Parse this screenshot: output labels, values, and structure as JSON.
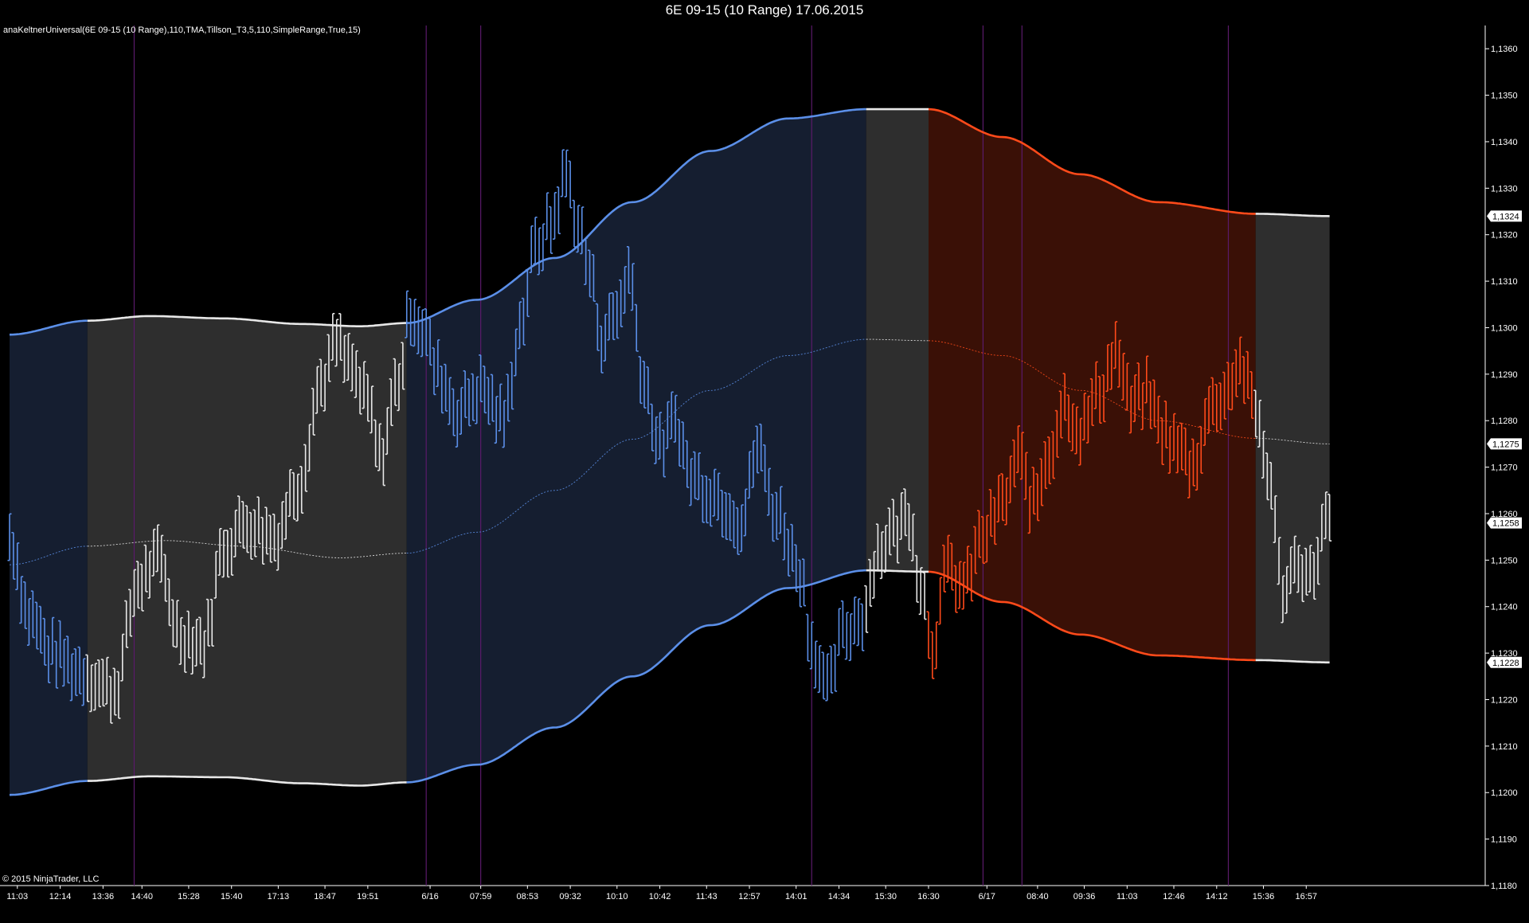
{
  "window": {
    "title": "6E 09-15 (10 Range)  17.06.2015"
  },
  "indicator_label": "anaKeltnerUniversal(6E 09-15 (10 Range),110,TMA,Tillson_T3,5,110,SimpleRange,True,15)",
  "copyright": "© 2015 NinjaTrader, LLC",
  "colors": {
    "background": "#000000",
    "up_regime": "#5B8FE8",
    "up_fill": "#151E30",
    "neutral": "#E8E8E8",
    "neutral_fill": "#2E2E2E",
    "down_regime": "#FF4A1A",
    "down_fill": "#3A1006",
    "session_line": "#5A1A6A"
  },
  "price_tags": [
    {
      "label": "1,1324",
      "value": 1.1324
    },
    {
      "label": "1,1275",
      "value": 1.1275
    },
    {
      "label": "1,1258",
      "value": 1.1258
    },
    {
      "label": "1,1228",
      "value": 1.1228
    }
  ],
  "chart_data": {
    "type": "line",
    "title": "6E 09-15 (10 Range)  17.06.2015",
    "xlabel": "",
    "ylabel": "",
    "ylim": [
      1.118,
      1.1365
    ],
    "y_ticks": [
      {
        "value": 1.118,
        "label": "1,1180"
      },
      {
        "value": 1.119,
        "label": "1,1190"
      },
      {
        "value": 1.12,
        "label": "1,1200"
      },
      {
        "value": 1.121,
        "label": "1,1210"
      },
      {
        "value": 1.122,
        "label": "1,1220"
      },
      {
        "value": 1.123,
        "label": "1,1230"
      },
      {
        "value": 1.124,
        "label": "1,1240"
      },
      {
        "value": 1.125,
        "label": "1,1250"
      },
      {
        "value": 1.126,
        "label": "1,1260"
      },
      {
        "value": 1.127,
        "label": "1,1270"
      },
      {
        "value": 1.128,
        "label": "1,1280"
      },
      {
        "value": 1.129,
        "label": "1,1290"
      },
      {
        "value": 1.13,
        "label": "1,1300"
      },
      {
        "value": 1.131,
        "label": "1,1310"
      },
      {
        "value": 1.132,
        "label": "1,1320"
      },
      {
        "value": 1.133,
        "label": "1,1330"
      },
      {
        "value": 1.134,
        "label": "1,1340"
      },
      {
        "value": 1.135,
        "label": "1,1350"
      },
      {
        "value": 1.136,
        "label": "1,1360"
      }
    ],
    "bar_count": 340,
    "x_ticks": [
      {
        "bar": 2,
        "label": "11:03"
      },
      {
        "bar": 13,
        "label": "12:14"
      },
      {
        "bar": 24,
        "label": "13:36"
      },
      {
        "bar": 34,
        "label": "14:40"
      },
      {
        "bar": 46,
        "label": "15:28"
      },
      {
        "bar": 57,
        "label": "15:40"
      },
      {
        "bar": 69,
        "label": "17:13"
      },
      {
        "bar": 81,
        "label": "18:47"
      },
      {
        "bar": 92,
        "label": "19:51"
      },
      {
        "bar": 108,
        "label": "6/16"
      },
      {
        "bar": 121,
        "label": "07:59"
      },
      {
        "bar": 133,
        "label": "08:53"
      },
      {
        "bar": 144,
        "label": "09:32"
      },
      {
        "bar": 156,
        "label": "10:10"
      },
      {
        "bar": 167,
        "label": "10:42"
      },
      {
        "bar": 179,
        "label": "11:43"
      },
      {
        "bar": 190,
        "label": "12:57"
      },
      {
        "bar": 202,
        "label": "14:01"
      },
      {
        "bar": 213,
        "label": "14:34"
      },
      {
        "bar": 225,
        "label": "15:30"
      },
      {
        "bar": 236,
        "label": "16:30"
      },
      {
        "bar": 251,
        "label": "6/17"
      },
      {
        "bar": 264,
        "label": "08:40"
      },
      {
        "bar": 276,
        "label": "09:36"
      },
      {
        "bar": 287,
        "label": "11:03"
      },
      {
        "bar": 299,
        "label": "12:46"
      },
      {
        "bar": 310,
        "label": "14:12"
      },
      {
        "bar": 322,
        "label": "15:36"
      },
      {
        "bar": 333,
        "label": "16:57"
      }
    ],
    "session_lines": [
      32,
      107,
      121,
      206,
      250,
      260,
      313
    ],
    "regimes": [
      {
        "state": "up",
        "start": 0,
        "end": 20
      },
      {
        "state": "neutral",
        "start": 20,
        "end": 102
      },
      {
        "state": "up",
        "start": 102,
        "end": 220
      },
      {
        "state": "neutral",
        "start": 220,
        "end": 236
      },
      {
        "state": "down",
        "start": 236,
        "end": 320
      },
      {
        "state": "neutral",
        "start": 320,
        "end": 339
      }
    ],
    "keltner": {
      "upper": [
        [
          0,
          1.12985
        ],
        [
          20,
          1.13015
        ],
        [
          36,
          1.13025
        ],
        [
          55,
          1.1302
        ],
        [
          75,
          1.13008
        ],
        [
          90,
          1.13003
        ],
        [
          102,
          1.1301
        ],
        [
          120,
          1.1306
        ],
        [
          140,
          1.1315
        ],
        [
          160,
          1.1327
        ],
        [
          180,
          1.1338
        ],
        [
          200,
          1.1345
        ],
        [
          220,
          1.1347
        ],
        [
          236,
          1.1347
        ],
        [
          255,
          1.1341
        ],
        [
          275,
          1.1333
        ],
        [
          295,
          1.1327
        ],
        [
          320,
          1.13245
        ],
        [
          339,
          1.1324
        ]
      ],
      "middle": [
        [
          0,
          1.1249
        ],
        [
          20,
          1.1253
        ],
        [
          40,
          1.12542
        ],
        [
          60,
          1.1253
        ],
        [
          85,
          1.12505
        ],
        [
          102,
          1.12515
        ],
        [
          120,
          1.1256
        ],
        [
          140,
          1.1265
        ],
        [
          160,
          1.1276
        ],
        [
          180,
          1.12865
        ],
        [
          200,
          1.1294
        ],
        [
          220,
          1.12975
        ],
        [
          236,
          1.12972
        ],
        [
          255,
          1.1294
        ],
        [
          275,
          1.12865
        ],
        [
          295,
          1.128
        ],
        [
          320,
          1.12762
        ],
        [
          339,
          1.1275
        ]
      ],
      "lower": [
        [
          0,
          1.11995
        ],
        [
          20,
          1.12025
        ],
        [
          36,
          1.12035
        ],
        [
          55,
          1.12033
        ],
        [
          75,
          1.1202
        ],
        [
          90,
          1.12015
        ],
        [
          102,
          1.12022
        ],
        [
          120,
          1.1206
        ],
        [
          140,
          1.1214
        ],
        [
          160,
          1.1225
        ],
        [
          180,
          1.1236
        ],
        [
          200,
          1.1244
        ],
        [
          220,
          1.12478
        ],
        [
          236,
          1.12475
        ],
        [
          255,
          1.1241
        ],
        [
          275,
          1.1234
        ],
        [
          295,
          1.12295
        ],
        [
          320,
          1.12285
        ],
        [
          339,
          1.1228
        ]
      ]
    },
    "price_path": [
      [
        0,
        1.1255
      ],
      [
        5,
        1.1238
      ],
      [
        11,
        1.123
      ],
      [
        18,
        1.1226
      ],
      [
        27,
        1.1222
      ],
      [
        33,
        1.1245
      ],
      [
        38,
        1.125
      ],
      [
        44,
        1.1234
      ],
      [
        50,
        1.1232
      ],
      [
        55,
        1.1253
      ],
      [
        61,
        1.1258
      ],
      [
        68,
        1.1255
      ],
      [
        74,
        1.1266
      ],
      [
        80,
        1.1288
      ],
      [
        84,
        1.1297
      ],
      [
        87,
        1.1292
      ],
      [
        92,
        1.1284
      ],
      [
        95,
        1.1272
      ],
      [
        100,
        1.1289
      ],
      [
        103,
        1.1304
      ],
      [
        106,
        1.13
      ],
      [
        110,
        1.129
      ],
      [
        115,
        1.1282
      ],
      [
        121,
        1.1287
      ],
      [
        127,
        1.128
      ],
      [
        131,
        1.13
      ],
      [
        135,
        1.1317
      ],
      [
        139,
        1.1322
      ],
      [
        143,
        1.1333
      ],
      [
        146,
        1.1322
      ],
      [
        149,
        1.1312
      ],
      [
        152,
        1.1298
      ],
      [
        156,
        1.1303
      ],
      [
        159,
        1.1312
      ],
      [
        163,
        1.1288
      ],
      [
        167,
        1.1274
      ],
      [
        171,
        1.128
      ],
      [
        175,
        1.1268
      ],
      [
        180,
        1.1265
      ],
      [
        184,
        1.1262
      ],
      [
        188,
        1.1258
      ],
      [
        192,
        1.1274
      ],
      [
        197,
        1.126
      ],
      [
        203,
        1.1248
      ],
      [
        206,
        1.1232
      ],
      [
        210,
        1.1222
      ],
      [
        214,
        1.1234
      ],
      [
        219,
        1.1238
      ],
      [
        223,
        1.1252
      ],
      [
        227,
        1.1256
      ],
      [
        231,
        1.126
      ],
      [
        234,
        1.1245
      ],
      [
        237,
        1.1232
      ],
      [
        241,
        1.1248
      ],
      [
        245,
        1.1244
      ],
      [
        250,
        1.1255
      ],
      [
        255,
        1.1262
      ],
      [
        259,
        1.1272
      ],
      [
        263,
        1.1262
      ],
      [
        267,
        1.1273
      ],
      [
        271,
        1.1284
      ],
      [
        275,
        1.1278
      ],
      [
        280,
        1.1286
      ],
      [
        284,
        1.1295
      ],
      [
        288,
        1.1283
      ],
      [
        292,
        1.1286
      ],
      [
        296,
        1.1278
      ],
      [
        300,
        1.1274
      ],
      [
        304,
        1.127
      ],
      [
        308,
        1.1282
      ],
      [
        312,
        1.1286
      ],
      [
        316,
        1.1292
      ],
      [
        320,
        1.1282
      ],
      [
        323,
        1.127
      ],
      [
        327,
        1.1244
      ],
      [
        331,
        1.125
      ],
      [
        334,
        1.1246
      ],
      [
        338,
        1.1258
      ],
      [
        339,
        1.1258
      ]
    ]
  }
}
